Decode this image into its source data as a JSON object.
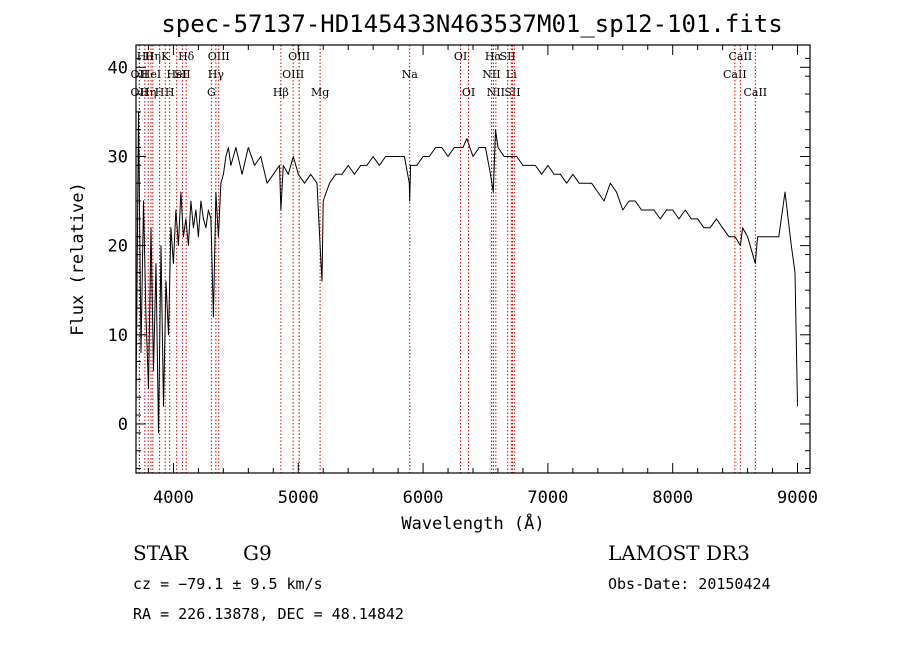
{
  "chart_data": {
    "type": "line",
    "title": "spec-57137-HD145433N463537M01_sp12-101.fits",
    "xlabel": "Wavelength (Å)",
    "ylabel": "Flux (relative)",
    "xlim": [
      3700,
      9100
    ],
    "ylim": [
      -5.5,
      42.5
    ],
    "x_ticks": [
      4000,
      5000,
      6000,
      7000,
      8000,
      9000
    ],
    "y_ticks": [
      0,
      10,
      20,
      30,
      40
    ],
    "x_tick_labels": [
      "4000",
      "5000",
      "6000",
      "7000",
      "8000",
      "9000"
    ],
    "y_tick_labels": [
      "0",
      "10",
      "20",
      "30",
      "40"
    ],
    "grid": false,
    "line_color": "#000000",
    "marker_color": "#cc0000",
    "spectrum": {
      "name": "",
      "x": [
        3700,
        3720,
        3740,
        3760,
        3780,
        3800,
        3820,
        3840,
        3860,
        3880,
        3900,
        3920,
        3940,
        3960,
        3980,
        4000,
        4020,
        4040,
        4060,
        4080,
        4100,
        4120,
        4140,
        4160,
        4180,
        4200,
        4220,
        4240,
        4260,
        4280,
        4300,
        4320,
        4340,
        4360,
        4380,
        4400,
        4420,
        4440,
        4460,
        4480,
        4500,
        4550,
        4600,
        4650,
        4700,
        4750,
        4800,
        4850,
        4861,
        4880,
        4920,
        4960,
        5000,
        5050,
        5100,
        5150,
        5175,
        5190,
        5200,
        5250,
        5300,
        5350,
        5400,
        5450,
        5500,
        5550,
        5600,
        5650,
        5700,
        5750,
        5800,
        5850,
        5890,
        5893,
        5900,
        5950,
        6000,
        6050,
        6100,
        6150,
        6200,
        6250,
        6300,
        6320,
        6350,
        6400,
        6450,
        6500,
        6540,
        6563,
        6580,
        6600,
        6650,
        6700,
        6750,
        6800,
        6850,
        6900,
        6950,
        7000,
        7050,
        7100,
        7150,
        7200,
        7250,
        7300,
        7350,
        7400,
        7450,
        7500,
        7550,
        7600,
        7650,
        7700,
        7750,
        7800,
        7850,
        7900,
        7950,
        8000,
        8050,
        8100,
        8150,
        8200,
        8250,
        8300,
        8350,
        8400,
        8450,
        8500,
        8542,
        8560,
        8600,
        8662,
        8680,
        8700,
        8750,
        8800,
        8850,
        8900,
        8950,
        8980,
        9000
      ],
      "y": [
        2,
        35,
        8,
        25,
        12,
        4,
        22,
        6,
        18,
        -1,
        20,
        2,
        16,
        10,
        22,
        18,
        24,
        20,
        26,
        21,
        23,
        20,
        25,
        22,
        24,
        21,
        25,
        23,
        22,
        24,
        23,
        12,
        26,
        21,
        27,
        28,
        30,
        31,
        29,
        30,
        31,
        28,
        31,
        29,
        30,
        27,
        28,
        29,
        24,
        29,
        28,
        30,
        28,
        27,
        28,
        27,
        20,
        16,
        25,
        27,
        28,
        28,
        29,
        28,
        29,
        29,
        30,
        29,
        30,
        30,
        30,
        30,
        27,
        25,
        29,
        29,
        30,
        30,
        31,
        31,
        30,
        31,
        31,
        31,
        32,
        30,
        31,
        31,
        28,
        26,
        33,
        31,
        30,
        30,
        30,
        29,
        29,
        29,
        28,
        29,
        28,
        28,
        27,
        28,
        27,
        27,
        27,
        26,
        25,
        27,
        26,
        24,
        25,
        25,
        24,
        24,
        24,
        23,
        24,
        24,
        23,
        24,
        23,
        23,
        22,
        22,
        23,
        22,
        21,
        21,
        20,
        22,
        21,
        18,
        21,
        21,
        21,
        21,
        21,
        26,
        20,
        17,
        2
      ]
    },
    "line_markers": [
      {
        "x": 3727,
        "label": "OII",
        "row": 1
      },
      {
        "x": 3727,
        "label": "OII",
        "row": 2
      },
      {
        "x": 3771,
        "label": "Hθ",
        "row": 0
      },
      {
        "x": 3798,
        "label": "Hη",
        "row": 2
      },
      {
        "x": 3820,
        "label": "HeI",
        "row": 1
      },
      {
        "x": 3835,
        "label": "Hη",
        "row": 0
      },
      {
        "x": 3889,
        "label": "H",
        "row": 2
      },
      {
        "x": 3934,
        "label": "K",
        "row": 0
      },
      {
        "x": 3970,
        "label": "H",
        "row": 2
      },
      {
        "x": 4026,
        "label": "HeI",
        "row": 1
      },
      {
        "x": 4072,
        "label": "SII",
        "row": 1
      },
      {
        "x": 4102,
        "label": "Hδ",
        "row": 0
      },
      {
        "x": 4304,
        "label": "G",
        "row": 2
      },
      {
        "x": 4340,
        "label": "Hγ",
        "row": 1
      },
      {
        "x": 4363,
        "label": "OIII",
        "row": 0
      },
      {
        "x": 4861,
        "label": "Hβ",
        "row": 2
      },
      {
        "x": 4959,
        "label": "OIII",
        "row": 1
      },
      {
        "x": 5007,
        "label": "OIII",
        "row": 0
      },
      {
        "x": 5175,
        "label": "Mg",
        "row": 2
      },
      {
        "x": 5893,
        "label": "Na",
        "row": 1
      },
      {
        "x": 6300,
        "label": "OI",
        "row": 0
      },
      {
        "x": 6364,
        "label": "OI",
        "row": 2
      },
      {
        "x": 6548,
        "label": "NII",
        "row": 1
      },
      {
        "x": 6563,
        "label": "Hα",
        "row": 0
      },
      {
        "x": 6583,
        "label": "NII",
        "row": 2
      },
      {
        "x": 6678,
        "label": "SII",
        "row": 0
      },
      {
        "x": 6707,
        "label": "Li",
        "row": 1
      },
      {
        "x": 6716,
        "label": "SII",
        "row": 2
      },
      {
        "x": 6731,
        "label": "",
        "row": 0
      },
      {
        "x": 8498,
        "label": "CaII",
        "row": 1
      },
      {
        "x": 8542,
        "label": "CaII",
        "row": 0
      },
      {
        "x": 8662,
        "label": "CaII",
        "row": 2
      }
    ]
  },
  "info": {
    "class": "STAR",
    "subclass": "G9",
    "survey": "LAMOST DR3",
    "cz": "cz = −79.1 ± 9.5 km/s",
    "obs_date": "Obs-Date: 20150424",
    "coords": "RA = 226.13878, DEC =  48.14842"
  }
}
